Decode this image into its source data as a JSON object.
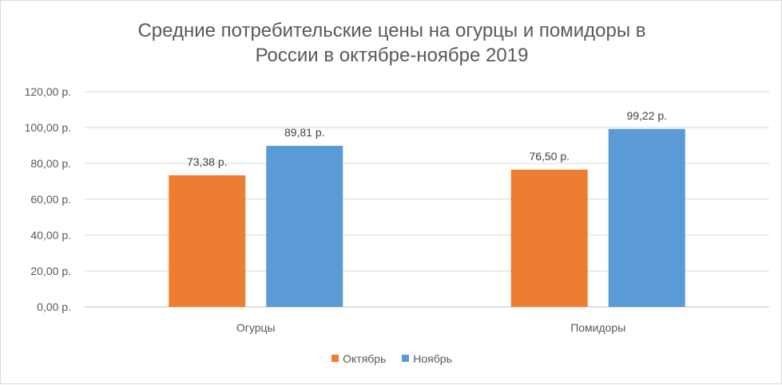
{
  "chart_data": {
    "type": "bar",
    "title": "Средние потребительские цены на огурцы и помидоры в России в октябре-ноябре 2019",
    "title_lines": [
      "Средние потребительские цены на огурцы и помидоры в",
      "России в октябре-ноябре  2019"
    ],
    "categories": [
      "Огурцы",
      "Помидоры"
    ],
    "series": [
      {
        "name": "Октябрь",
        "values": [
          73.38,
          76.5
        ],
        "labels": [
          "73,38 р.",
          "76,50 р."
        ],
        "color": "#ED7D31"
      },
      {
        "name": "Ноябрь",
        "values": [
          89.81,
          99.22
        ],
        "labels": [
          "89,81 р.",
          "99,22 р."
        ],
        "color": "#5B9BD5"
      }
    ],
    "ylim": [
      0,
      120
    ],
    "yticks": [
      0,
      20,
      40,
      60,
      80,
      100,
      120
    ],
    "ytick_labels": [
      "0,00 р.",
      "20,00 р.",
      "40,00 р.",
      "60,00 р.",
      "80,00 р.",
      "100,00 р.",
      "120,00 р."
    ],
    "grid": true,
    "legend_position": "bottom"
  }
}
